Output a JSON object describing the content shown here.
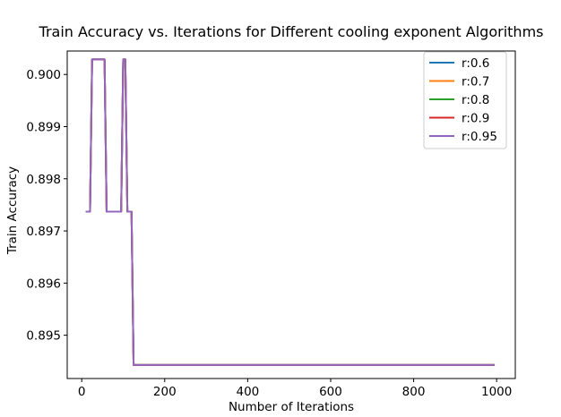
{
  "chart_data": {
    "type": "line",
    "title": "Train Accuracy vs. Iterations for Different cooling exponent Algorithms",
    "xlabel": "Number of Iterations",
    "ylabel": "Train Accuracy",
    "xlim": [
      -35,
      1045
    ],
    "ylim": [
      0.89417,
      0.90045
    ],
    "xticks": [
      0,
      200,
      400,
      600,
      800,
      1000
    ],
    "xtick_labels": [
      "0",
      "200",
      "400",
      "600",
      "800",
      "1000"
    ],
    "yticks": [
      0.895,
      0.896,
      0.897,
      0.898,
      0.899,
      0.9
    ],
    "ytick_labels": [
      "0.895",
      "0.896",
      "0.897",
      "0.898",
      "0.899",
      "0.900"
    ],
    "grid": false,
    "legend_position": "top-right",
    "x": [
      10,
      20,
      25,
      30,
      40,
      50,
      55,
      60,
      65,
      70,
      80,
      90,
      95,
      100,
      105,
      110,
      115,
      120,
      125,
      130,
      150,
      200,
      300,
      400,
      500,
      600,
      700,
      800,
      900,
      995
    ],
    "series": [
      {
        "name": "r:0.6",
        "color": "#1f77b4",
        "values": [
          0.89737,
          0.89737,
          0.90029,
          0.90029,
          0.90029,
          0.90029,
          0.90029,
          0.89737,
          0.89737,
          0.89737,
          0.89737,
          0.89737,
          0.89737,
          0.90029,
          0.90029,
          0.89737,
          0.89737,
          0.89737,
          0.89443,
          0.89443,
          0.89443,
          0.89443,
          0.89443,
          0.89443,
          0.89443,
          0.89443,
          0.89443,
          0.89443,
          0.89443,
          0.89443
        ]
      },
      {
        "name": "r:0.7",
        "color": "#ff7f0e",
        "values": [
          0.89737,
          0.89737,
          0.90029,
          0.90029,
          0.90029,
          0.90029,
          0.90029,
          0.89737,
          0.89737,
          0.89737,
          0.89737,
          0.89737,
          0.89737,
          0.90029,
          0.90029,
          0.89737,
          0.89737,
          0.89737,
          0.89443,
          0.89443,
          0.89443,
          0.89443,
          0.89443,
          0.89443,
          0.89443,
          0.89443,
          0.89443,
          0.89443,
          0.89443,
          0.89443
        ]
      },
      {
        "name": "r:0.8",
        "color": "#2ca02c",
        "values": [
          0.89737,
          0.89737,
          0.90029,
          0.90029,
          0.90029,
          0.90029,
          0.90029,
          0.89737,
          0.89737,
          0.89737,
          0.89737,
          0.89737,
          0.89737,
          0.90029,
          0.90029,
          0.89737,
          0.89737,
          0.89737,
          0.89443,
          0.89443,
          0.89443,
          0.89443,
          0.89443,
          0.89443,
          0.89443,
          0.89443,
          0.89443,
          0.89443,
          0.89443,
          0.89443
        ]
      },
      {
        "name": "r:0.9",
        "color": "#d62728",
        "values": [
          0.89737,
          0.89737,
          0.90029,
          0.90029,
          0.90029,
          0.90029,
          0.90029,
          0.89737,
          0.89737,
          0.89737,
          0.89737,
          0.89737,
          0.89737,
          0.90029,
          0.90029,
          0.89737,
          0.89737,
          0.89737,
          0.89443,
          0.89443,
          0.89443,
          0.89443,
          0.89443,
          0.89443,
          0.89443,
          0.89443,
          0.89443,
          0.89443,
          0.89443,
          0.89443
        ]
      },
      {
        "name": "r:0.95",
        "color": "#9467bd",
        "values": [
          0.89737,
          0.89737,
          0.90029,
          0.90029,
          0.90029,
          0.90029,
          0.90029,
          0.89737,
          0.89737,
          0.89737,
          0.89737,
          0.89737,
          0.89737,
          0.90029,
          0.90029,
          0.89737,
          0.89737,
          0.89737,
          0.89443,
          0.89443,
          0.89443,
          0.89443,
          0.89443,
          0.89443,
          0.89443,
          0.89443,
          0.89443,
          0.89443,
          0.89443,
          0.89443
        ]
      }
    ]
  }
}
